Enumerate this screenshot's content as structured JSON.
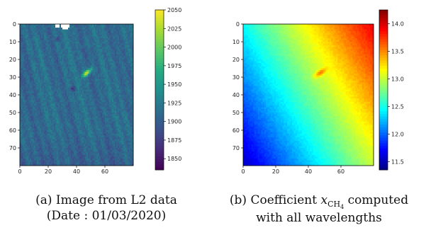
{
  "chart_data": [
    {
      "type": "heatmap",
      "title": "",
      "xlabel": "",
      "ylabel": "",
      "grid_size": [
        80,
        80
      ],
      "x_ticks": [
        0,
        20,
        40,
        60
      ],
      "y_ticks": [
        0,
        10,
        20,
        30,
        40,
        50,
        60,
        70
      ],
      "xlim": [
        0,
        80
      ],
      "ylim": [
        80,
        0
      ],
      "colormap": "viridis",
      "colorbar_range": [
        1835,
        2050
      ],
      "colorbar_ticks": [
        1850,
        1875,
        1900,
        1925,
        1950,
        1975,
        2000,
        2025,
        2050
      ],
      "features": {
        "background_level": 1912,
        "plume_peak": 2035,
        "plume_center": [
          47,
          27
        ],
        "missing_pixels_color": "#ffffff"
      }
    },
    {
      "type": "heatmap",
      "title": "",
      "xlabel": "",
      "ylabel": "",
      "grid_size": [
        80,
        80
      ],
      "x_ticks": [
        0,
        20,
        40,
        60
      ],
      "y_ticks": [
        0,
        10,
        20,
        30,
        40,
        50,
        60,
        70
      ],
      "xlim": [
        0,
        80
      ],
      "ylim": [
        80,
        0
      ],
      "colormap": "jet",
      "colorbar_range": [
        11.35,
        14.25
      ],
      "colorbar_ticks": [
        11.5,
        12.0,
        12.5,
        13.0,
        13.5,
        14.0
      ],
      "features": {
        "min_corner": "bottom-left",
        "max_corner": "top-right",
        "plume_peak": 13.55,
        "plume_center": [
          47,
          27
        ]
      }
    }
  ],
  "captions": {
    "a": {
      "line1": "(a) Image from L2 data",
      "line2": "(Date : 01/03/2020)"
    },
    "b": {
      "line1_prefix": "(b) Coefficient ",
      "symbol": "x",
      "subscript": "CH",
      "sub_subscript": "4",
      "line1_suffix": " computed",
      "line2": "with all wavelengths"
    }
  }
}
